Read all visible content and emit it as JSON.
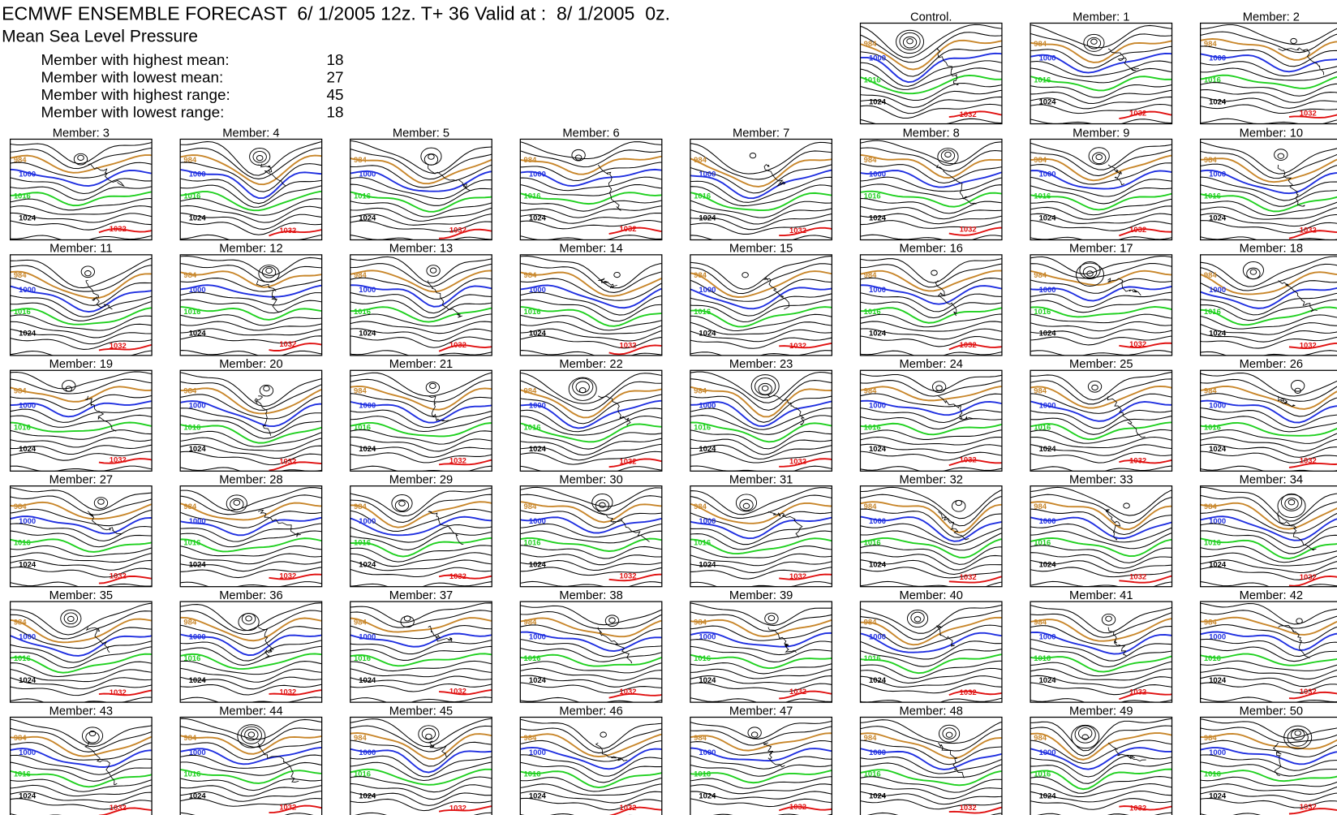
{
  "header": {
    "title": "ECMWF ENSEMBLE FORECAST  6/ 1/2005 12z. T+ 36 Valid at :  8/ 1/2005  0z.",
    "subtitle": "Mean Sea Level Pressure",
    "stats": [
      {
        "label": "Member with highest mean:",
        "value": "18"
      },
      {
        "label": "Member with lowest mean:",
        "value": "27"
      },
      {
        "label": "Member with highest range:",
        "value": "45"
      },
      {
        "label": "Member with lowest range:",
        "value": "18"
      }
    ]
  },
  "isobars": [
    {
      "label": "984",
      "color": "#c8862a"
    },
    {
      "label": "1000",
      "color": "#1f2fe0"
    },
    {
      "label": "1016",
      "color": "#1fd01f"
    },
    {
      "label": "1024",
      "color": "#000000"
    },
    {
      "label": "1032",
      "color": "#e01010"
    }
  ],
  "panels": [
    "Control.",
    "Member:  1",
    "Member:  2",
    "Member:  3",
    "Member:  4",
    "Member:  5",
    "Member:  6",
    "Member:  7",
    "Member:  8",
    "Member:  9",
    "Member: 10",
    "Member: 11",
    "Member: 12",
    "Member: 13",
    "Member: 14",
    "Member: 15",
    "Member: 16",
    "Member: 17",
    "Member: 18",
    "Member: 19",
    "Member: 20",
    "Member: 21",
    "Member: 22",
    "Member: 23",
    "Member: 24",
    "Member: 25",
    "Member: 26",
    "Member: 27",
    "Member: 28",
    "Member: 29",
    "Member: 30",
    "Member: 31",
    "Member: 32",
    "Member: 33",
    "Member: 34",
    "Member: 35",
    "Member: 36",
    "Member: 37",
    "Member: 38",
    "Member: 39",
    "Member: 40",
    "Member: 41",
    "Member: 42",
    "Member: 43",
    "Member: 44",
    "Member: 45",
    "Member: 46",
    "Member: 47",
    "Member: 48",
    "Member: 49",
    "Member: 50"
  ]
}
